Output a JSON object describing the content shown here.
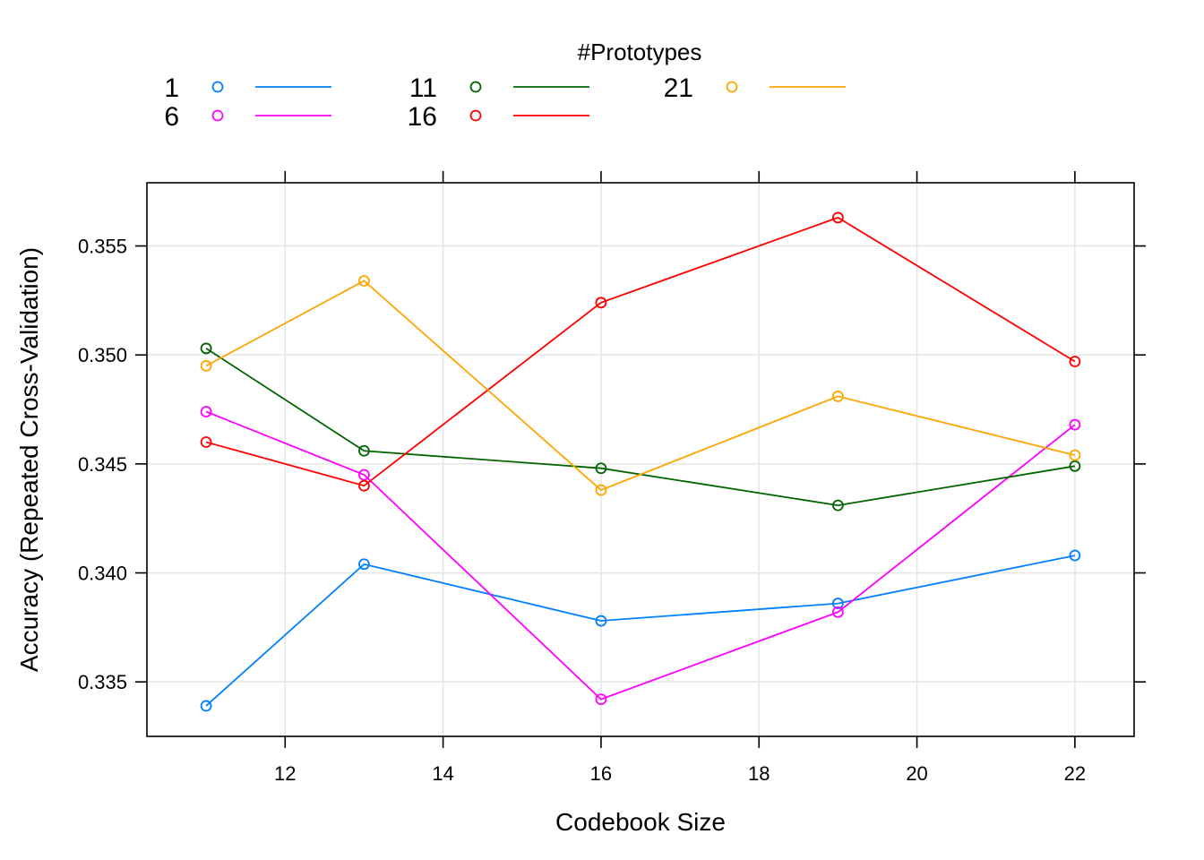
{
  "chart_data": {
    "type": "line",
    "xlabel": "Codebook Size",
    "ylabel": "Accuracy (Repeated Cross-Validation)",
    "legend_title": "#Prototypes",
    "legend_position": "top",
    "grid": true,
    "xlim": [
      10.25,
      22.75
    ],
    "ylim": [
      0.3325,
      0.3579
    ],
    "x_ticks": [
      12,
      14,
      16,
      18,
      20,
      22
    ],
    "x_tick_labels": [
      "12",
      "14",
      "16",
      "18",
      "20",
      "22"
    ],
    "y_ticks": [
      0.335,
      0.34,
      0.345,
      0.35,
      0.355
    ],
    "y_tick_labels": [
      "0.335",
      "0.340",
      "0.345",
      "0.350",
      "0.355"
    ],
    "x": [
      11,
      13,
      16,
      19,
      22
    ],
    "series": [
      {
        "name": "1",
        "color": "#0080ff",
        "values": [
          0.3339,
          0.3404,
          0.3378,
          0.3386,
          0.3408
        ]
      },
      {
        "name": "6",
        "color": "#ff00ff",
        "values": [
          0.3474,
          0.3445,
          0.3342,
          0.3382,
          0.3468
        ]
      },
      {
        "name": "11",
        "color": "#006400",
        "values": [
          0.3503,
          0.3456,
          0.3448,
          0.3431,
          0.3449
        ]
      },
      {
        "name": "16",
        "color": "#ff0000",
        "values": [
          0.346,
          0.344,
          0.3524,
          0.3563,
          0.3497
        ]
      },
      {
        "name": "21",
        "color": "#ffa500",
        "values": [
          0.3495,
          0.3534,
          0.3438,
          0.3481,
          0.3454
        ]
      }
    ]
  }
}
